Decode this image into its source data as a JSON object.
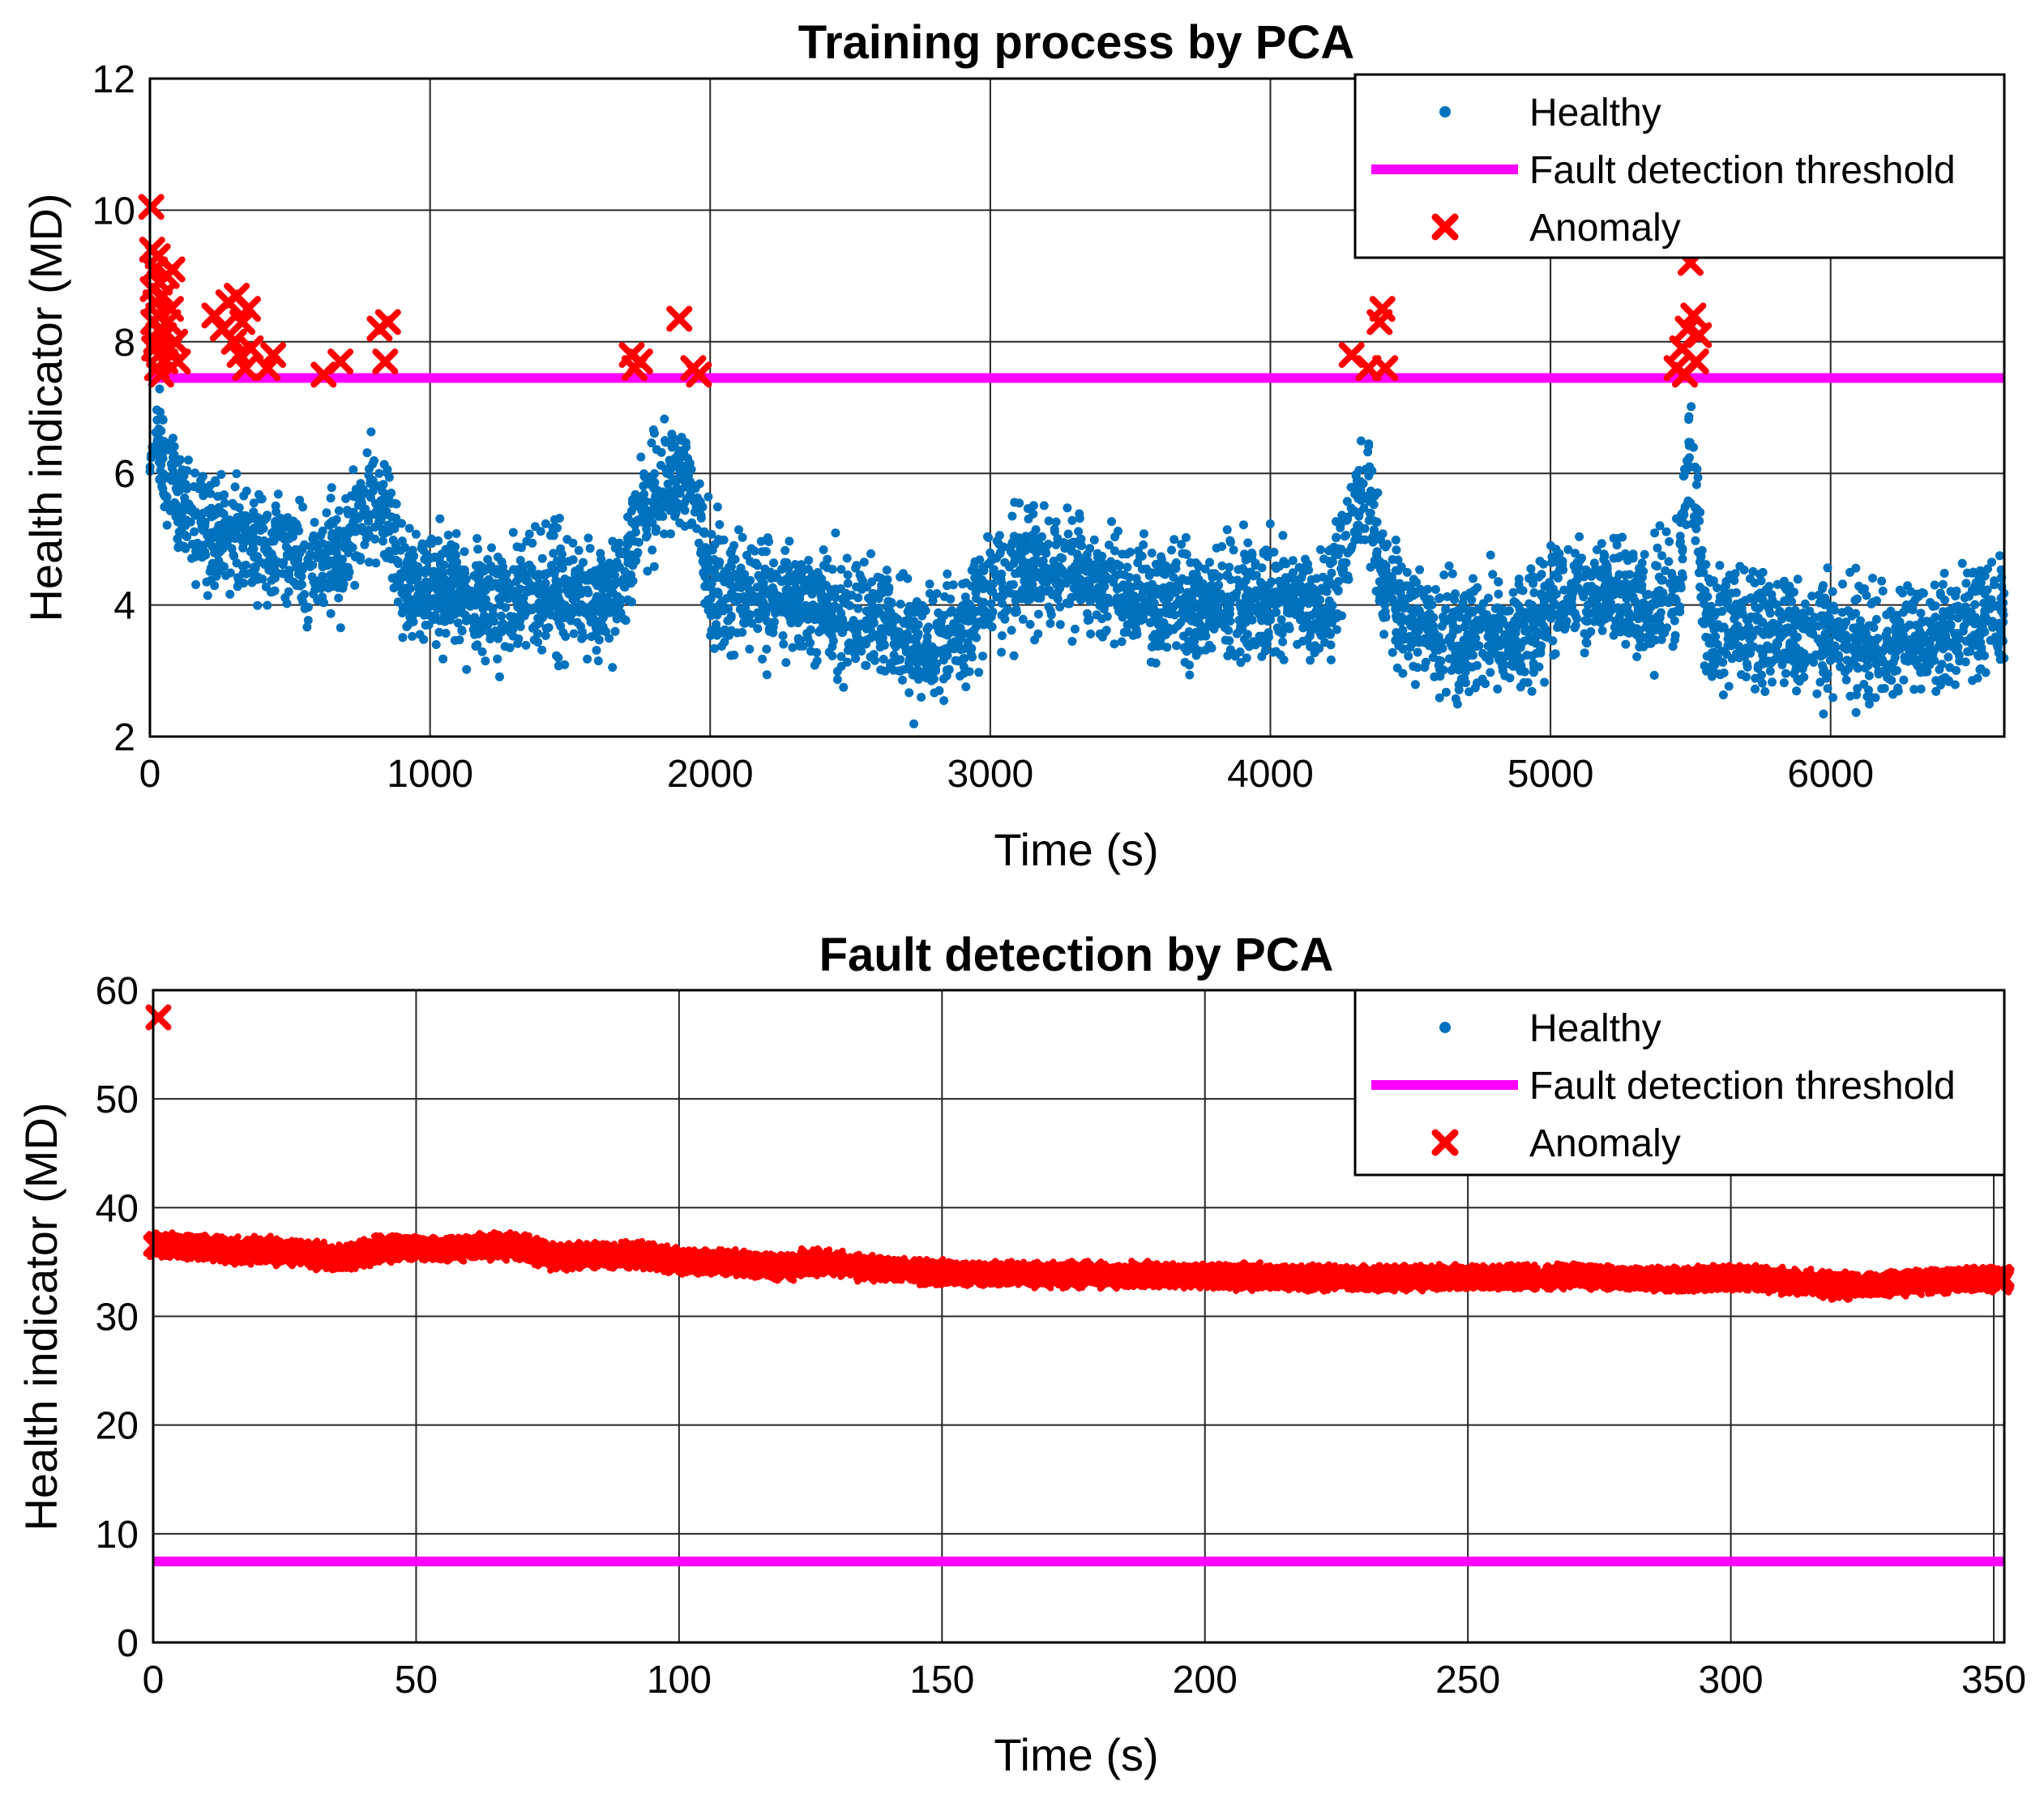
{
  "chart_data": [
    {
      "type": "scatter",
      "title": "Training process by PCA",
      "xlabel": "Time (s)",
      "ylabel": "Health indicator (MD)",
      "xlim": [
        0,
        6620
      ],
      "ylim": [
        2,
        12
      ],
      "xticks": [
        0,
        1000,
        2000,
        3000,
        4000,
        5000,
        6000
      ],
      "yticks": [
        2,
        4,
        6,
        8,
        10,
        12
      ],
      "xtick_labels": [
        "0",
        "1000",
        "2000",
        "3000",
        "4000",
        "5000",
        "6000"
      ],
      "ytick_labels": [
        "2",
        "4",
        "6",
        "8",
        "10",
        "12"
      ],
      "grid": true,
      "legend_position": "top-right",
      "legend": [
        "Healthy",
        "Fault detection threshold",
        "Anomaly"
      ],
      "threshold": 7.45,
      "healthy_trend": {
        "x": [
          0,
          50,
          100,
          200,
          300,
          400,
          500,
          600,
          700,
          800,
          850,
          900,
          1000,
          1200,
          1400,
          1600,
          1700,
          1750,
          1800,
          1900,
          1950,
          2000,
          2200,
          2400,
          2600,
          2700,
          2750,
          2800,
          2900,
          3000,
          3200,
          3300,
          3400,
          3600,
          3800,
          4000,
          4200,
          4300,
          4350,
          4400,
          4500,
          4700,
          4900,
          5000,
          5100,
          5300,
          5450,
          5500,
          5550,
          5600,
          5800,
          6000,
          6200,
          6400,
          6620
        ],
        "y": [
          6.6,
          6.2,
          5.6,
          5.1,
          5.0,
          4.9,
          4.7,
          4.6,
          4.9,
          5.6,
          5.4,
          4.4,
          4.2,
          4.1,
          4.2,
          4.1,
          4.4,
          5.5,
          5.7,
          6.0,
          5.6,
          4.3,
          4.1,
          4.0,
          3.8,
          3.5,
          3.3,
          3.4,
          3.6,
          4.3,
          4.6,
          4.5,
          4.2,
          4.0,
          4.0,
          4.1,
          4.0,
          5.5,
          5.8,
          4.2,
          3.8,
          3.5,
          3.6,
          4.1,
          4.2,
          4.1,
          4.1,
          6.4,
          3.8,
          3.7,
          3.6,
          3.5,
          3.4,
          3.6,
          3.9
        ],
        "spread": 0.55,
        "point_count": 5200
      },
      "anomaly_points": {
        "x": [
          5,
          8,
          10,
          12,
          15,
          18,
          20,
          22,
          25,
          28,
          30,
          32,
          35,
          38,
          40,
          45,
          50,
          55,
          60,
          65,
          70,
          75,
          80,
          90,
          100,
          230,
          260,
          280,
          300,
          310,
          320,
          330,
          340,
          350,
          360,
          420,
          440,
          620,
          680,
          820,
          840,
          850,
          1720,
          1730,
          1750,
          1890,
          1940,
          1960,
          4290,
          4350,
          4390,
          4400,
          4410,
          5450,
          5470,
          5480,
          5490,
          5500,
          5510,
          5520,
          5530
        ],
        "y": [
          10.05,
          9.4,
          8.8,
          8.3,
          7.9,
          9.1,
          8.6,
          8.0,
          7.6,
          9.3,
          8.4,
          7.8,
          8.9,
          8.2,
          7.5,
          8.7,
          8.1,
          7.7,
          9.0,
          8.3,
          7.9,
          8.5,
          9.1,
          8.0,
          7.7,
          8.4,
          8.2,
          8.6,
          8.0,
          8.7,
          7.8,
          8.3,
          7.6,
          8.5,
          7.9,
          7.6,
          7.8,
          7.5,
          7.7,
          8.2,
          7.7,
          8.3,
          7.8,
          7.6,
          7.7,
          8.35,
          7.6,
          7.5,
          7.8,
          7.6,
          8.3,
          8.5,
          7.6,
          7.6,
          7.9,
          7.5,
          8.2,
          9.2,
          8.4,
          7.7,
          8.1
        ],
        "marker": "x"
      },
      "colors": {
        "healthy": "#0072BD",
        "threshold": "#FF00FF",
        "anomaly": "#FF0000"
      }
    },
    {
      "type": "scatter",
      "title": "Fault detection by PCA",
      "xlabel": "Time (s)",
      "ylabel": "Health indicator (MD)",
      "xlim": [
        0,
        352
      ],
      "ylim": [
        0,
        60
      ],
      "xticks": [
        0,
        50,
        100,
        150,
        200,
        250,
        300,
        350
      ],
      "yticks": [
        0,
        10,
        20,
        30,
        40,
        50,
        60
      ],
      "xtick_labels": [
        "0",
        "50",
        "100",
        "150",
        "200",
        "250",
        "300",
        "350"
      ],
      "ytick_labels": [
        "0",
        "10",
        "20",
        "30",
        "40",
        "50",
        "60"
      ],
      "grid": true,
      "legend_position": "top-right",
      "legend": [
        "Healthy",
        "Fault detection threshold",
        "Anomaly"
      ],
      "threshold": 7.45,
      "outlier": {
        "x": 1,
        "y": 57.5
      },
      "anomaly_trend": {
        "x": [
          0,
          10,
          20,
          30,
          35,
          40,
          45,
          50,
          60,
          70,
          75,
          80,
          90,
          95,
          100,
          110,
          120,
          125,
          130,
          140,
          150,
          170,
          180,
          200,
          220,
          240,
          250,
          270,
          290,
          300,
          310,
          320,
          330,
          340,
          352
        ],
        "y": [
          36.5,
          36.3,
          36.0,
          35.8,
          35.3,
          35.8,
          36.5,
          36.2,
          36.3,
          36.5,
          35.6,
          35.5,
          35.6,
          35.5,
          35.0,
          35.0,
          34.5,
          35.0,
          34.8,
          34.3,
          34.0,
          33.8,
          33.8,
          33.7,
          33.5,
          33.6,
          33.5,
          33.7,
          33.3,
          33.5,
          33.3,
          32.8,
          33.0,
          33.2,
          33.5
        ],
        "spread": 0.45,
        "point_count": 1400
      },
      "colors": {
        "threshold": "#FF00FF",
        "anomaly": "#FF0000",
        "healthy": "#0072BD"
      }
    }
  ]
}
